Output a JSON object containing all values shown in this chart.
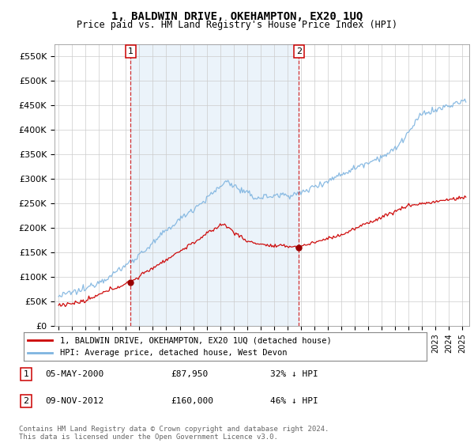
{
  "title": "1, BALDWIN DRIVE, OKEHAMPTON, EX20 1UQ",
  "subtitle": "Price paid vs. HM Land Registry's House Price Index (HPI)",
  "legend_line1": "1, BALDWIN DRIVE, OKEHAMPTON, EX20 1UQ (detached house)",
  "legend_line2": "HPI: Average price, detached house, West Devon",
  "transaction1_label": "1",
  "transaction1_date": "05-MAY-2000",
  "transaction1_price": "£87,950",
  "transaction1_hpi": "32% ↓ HPI",
  "transaction1_year": 2000.35,
  "transaction1_value": 87950,
  "transaction2_label": "2",
  "transaction2_date": "09-NOV-2012",
  "transaction2_price": "£160,000",
  "transaction2_hpi": "46% ↓ HPI",
  "transaction2_year": 2012.85,
  "transaction2_value": 160000,
  "hpi_color": "#7eb4e0",
  "price_color": "#cc0000",
  "marker_color": "#990000",
  "fill_color": "#ddeeff",
  "ylim": [
    0,
    575000
  ],
  "yticks": [
    0,
    50000,
    100000,
    150000,
    200000,
    250000,
    300000,
    350000,
    400000,
    450000,
    500000,
    550000
  ],
  "ytick_labels": [
    "£0",
    "£50K",
    "£100K",
    "£150K",
    "£200K",
    "£250K",
    "£300K",
    "£350K",
    "£400K",
    "£450K",
    "£500K",
    "£550K"
  ],
  "xlim_start": 1994.7,
  "xlim_end": 2025.5,
  "footnote": "Contains HM Land Registry data © Crown copyright and database right 2024.\nThis data is licensed under the Open Government Licence v3.0.",
  "background_color": "#ffffff",
  "grid_color": "#cccccc"
}
